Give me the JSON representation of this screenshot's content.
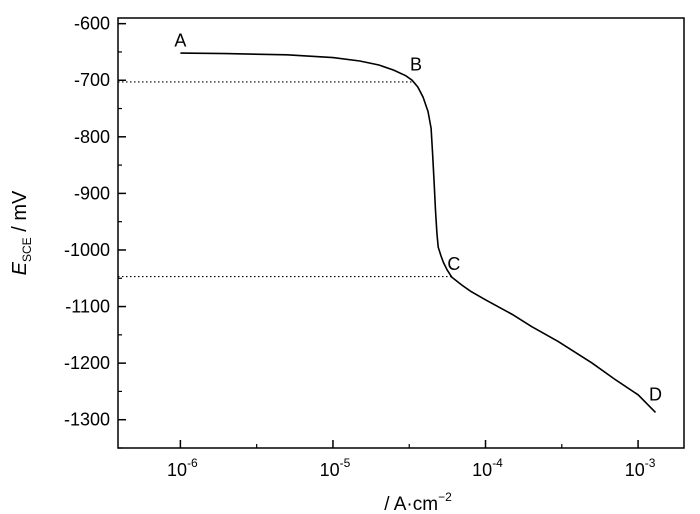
{
  "chart_data": {
    "type": "line",
    "title": "",
    "xlabel": {
      "prefix": "/",
      "main": "/ A·cm",
      "sup": "−2"
    },
    "ylabel": {
      "main": "E",
      "sub": "SCE",
      "suffix": " / mV"
    },
    "x_scale": "log",
    "xlim": [
      3.9e-07,
      0.002
    ],
    "ylim": [
      -1350,
      -590
    ],
    "x_ticks": [
      {
        "value": 1e-06,
        "base": "10",
        "exp": "-6"
      },
      {
        "value": 1e-05,
        "base": "10",
        "exp": "-5"
      },
      {
        "value": 0.0001,
        "base": "10",
        "exp": "-4"
      },
      {
        "value": 0.001,
        "base": "10",
        "exp": "-3"
      }
    ],
    "y_ticks": [
      {
        "value": -600,
        "label": "-600"
      },
      {
        "value": -700,
        "label": "-700"
      },
      {
        "value": -800,
        "label": "-800"
      },
      {
        "value": -900,
        "label": "-900"
      },
      {
        "value": -1000,
        "label": "-1000"
      },
      {
        "value": -1100,
        "label": "-1100"
      },
      {
        "value": -1200,
        "label": "-1200"
      },
      {
        "value": -1300,
        "label": "-1300"
      }
    ],
    "grid": false,
    "series": [
      {
        "x": [
          1e-06,
          2e-06,
          5e-06,
          1e-05,
          1.5e-05,
          2e-05,
          2.5e-05,
          3e-05,
          3.3e-05,
          3.6e-05,
          3.9e-05,
          4.2e-05,
          4.4e-05,
          4.5e-05,
          4.6e-05,
          4.7e-05,
          4.8e-05,
          4.9e-05,
          5.1e-05,
          5.3e-05,
          5.6e-05,
          6e-05,
          7e-05,
          8e-05,
          0.0001,
          0.00015,
          0.0002,
          0.0003,
          0.0005,
          0.0007,
          0.001,
          0.0013
        ],
        "y": [
          -652,
          -653,
          -655,
          -660,
          -666,
          -673,
          -682,
          -692,
          -700,
          -712,
          -730,
          -755,
          -785,
          -830,
          -880,
          -930,
          -970,
          -995,
          -1010,
          -1022,
          -1035,
          -1048,
          -1062,
          -1073,
          -1088,
          -1114,
          -1135,
          -1162,
          -1200,
          -1228,
          -1256,
          -1287
        ]
      }
    ],
    "reference_lines": [
      {
        "x_from": 3.9e-07,
        "x_to": 3.3e-05,
        "y": -703
      },
      {
        "x_from": 3.9e-07,
        "x_to": 6e-05,
        "y": -1047
      }
    ],
    "point_labels": [
      {
        "text": "A",
        "x": 1e-06,
        "y": -640
      },
      {
        "text": "B",
        "x": 3.5e-05,
        "y": -683
      },
      {
        "text": "C",
        "x": 6.2e-05,
        "y": -1035
      },
      {
        "text": "D",
        "x": 0.0013,
        "y": -1266
      }
    ]
  }
}
